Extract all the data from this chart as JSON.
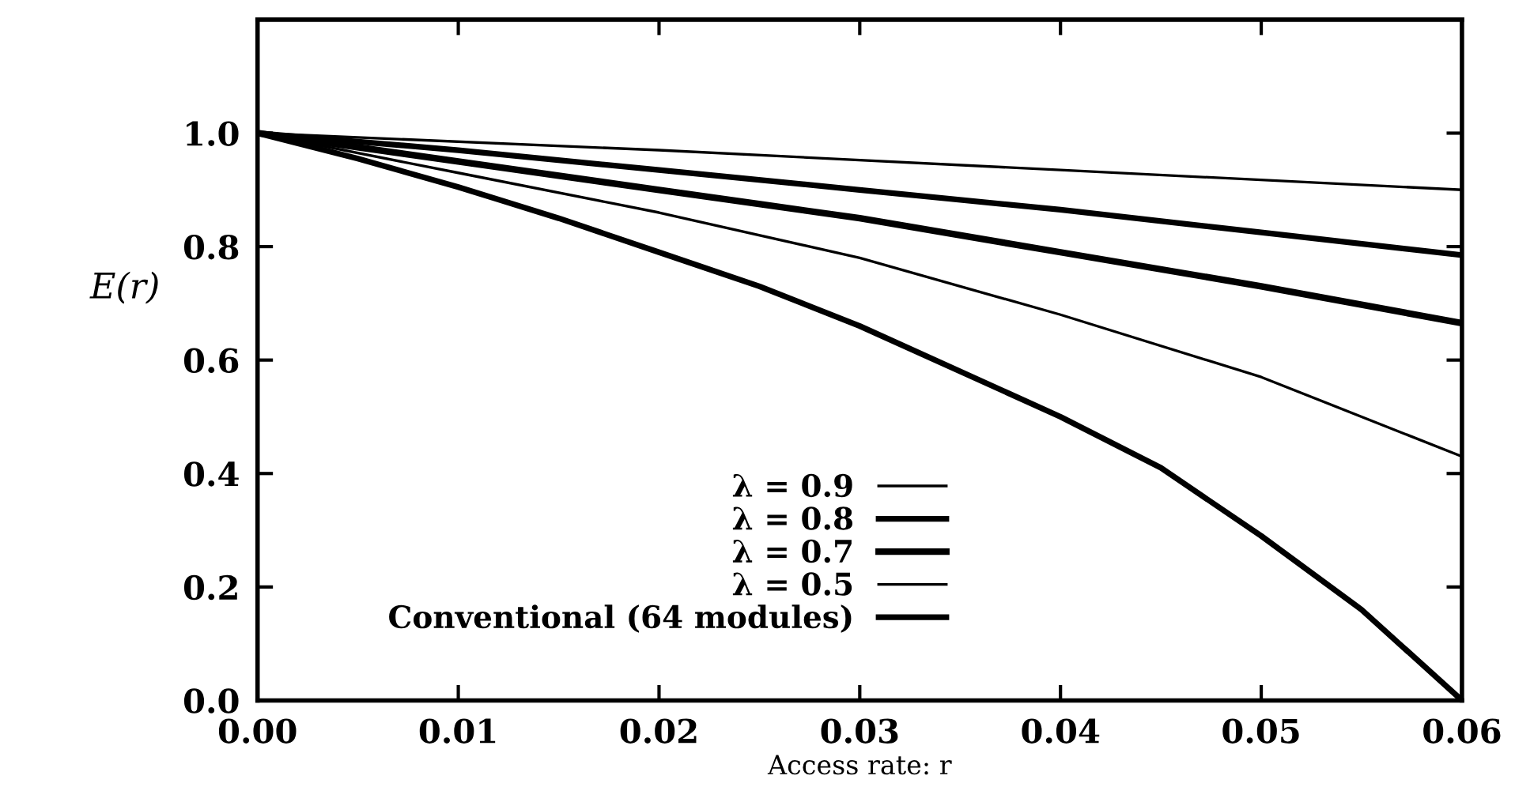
{
  "chart_data": {
    "type": "line",
    "xlabel": "Access rate: r",
    "ylabel": "E(r)",
    "xlim": [
      0,
      0.06
    ],
    "ylim": [
      0,
      1.2
    ],
    "xticks": [
      {
        "value": 0,
        "label": "0.00"
      },
      {
        "value": 0.01,
        "label": "0.01"
      },
      {
        "value": 0.02,
        "label": "0.02"
      },
      {
        "value": 0.03,
        "label": "0.03"
      },
      {
        "value": 0.04,
        "label": "0.04"
      },
      {
        "value": 0.05,
        "label": "0.05"
      },
      {
        "value": 0.06,
        "label": "0.06"
      }
    ],
    "yticks": [
      {
        "value": 0,
        "label": "0.0"
      },
      {
        "value": 0.2,
        "label": "0.2"
      },
      {
        "value": 0.4,
        "label": "0.4"
      },
      {
        "value": 0.6,
        "label": "0.6"
      },
      {
        "value": 0.8,
        "label": "0.8"
      },
      {
        "value": 1,
        "label": "1.0"
      }
    ],
    "grid": false,
    "legend": "bottom",
    "marker": "none",
    "line_style": "solid",
    "series": [
      {
        "name": "λ = 0.9",
        "color": "#000000",
        "x": [
          0,
          0.02,
          0.04,
          0.06
        ],
        "values": [
          1,
          0.97,
          0.935,
          0.9
        ]
      },
      {
        "name": "λ = 0.8",
        "color": "#000000",
        "x": [
          0,
          0.01,
          0.02,
          0.03,
          0.04,
          0.05,
          0.06
        ],
        "values": [
          1,
          0.97,
          0.935,
          0.9,
          0.865,
          0.825,
          0.785
        ]
      },
      {
        "name": "λ = 0.7",
        "color": "#000000",
        "x": [
          0,
          0.01,
          0.02,
          0.03,
          0.04,
          0.05,
          0.06
        ],
        "values": [
          1,
          0.95,
          0.9,
          0.85,
          0.79,
          0.73,
          0.665
        ]
      },
      {
        "name": "λ = 0.5",
        "color": "#000000",
        "x": [
          0,
          0.01,
          0.02,
          0.03,
          0.04,
          0.05,
          0.06
        ],
        "values": [
          1,
          0.93,
          0.86,
          0.78,
          0.68,
          0.57,
          0.43
        ]
      },
      {
        "name": "Conventional (64 modules)",
        "color": "#000000",
        "x": [
          0,
          0.005,
          0.01,
          0.015,
          0.02,
          0.025,
          0.03,
          0.035,
          0.04,
          0.045,
          0.05,
          0.055,
          0.06
        ],
        "values": [
          1,
          0.955,
          0.905,
          0.85,
          0.79,
          0.73,
          0.66,
          0.58,
          0.5,
          0.41,
          0.29,
          0.16,
          0.0
        ]
      }
    ]
  }
}
